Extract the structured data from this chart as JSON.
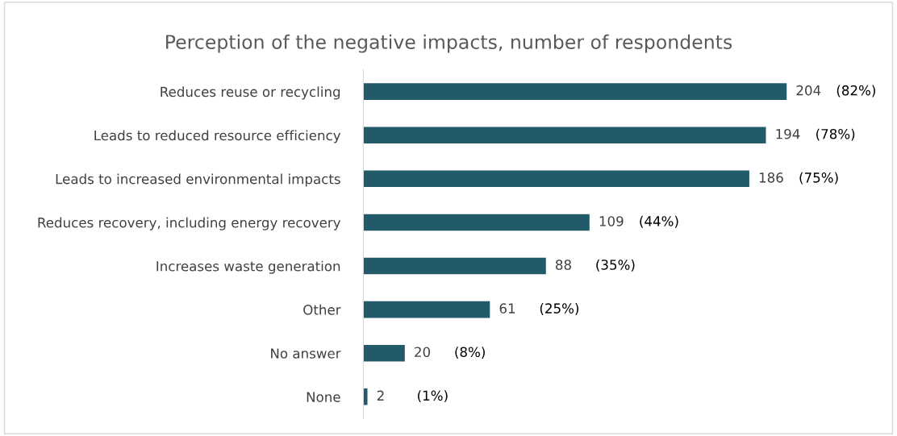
{
  "chart_data": {
    "type": "bar",
    "orientation": "horizontal",
    "title": "Perception of the negative impacts, number of respondents",
    "categories": [
      "Reduces reuse or recycling",
      "Leads to reduced resource efficiency",
      "Leads to increased environmental impacts",
      "Reduces recovery, including energy recovery",
      "Increases waste generation",
      "Other",
      "No answer",
      "None"
    ],
    "values": [
      204,
      194,
      186,
      109,
      88,
      61,
      20,
      2
    ],
    "color": "#235a6a",
    "data_labels": true,
    "grid": false,
    "legend": false,
    "annotations": [
      "(82%)",
      "(78%)",
      "(75%)",
      "(44%)",
      "(35%)",
      "(25%)",
      "(8%)",
      "(1%)"
    ]
  }
}
